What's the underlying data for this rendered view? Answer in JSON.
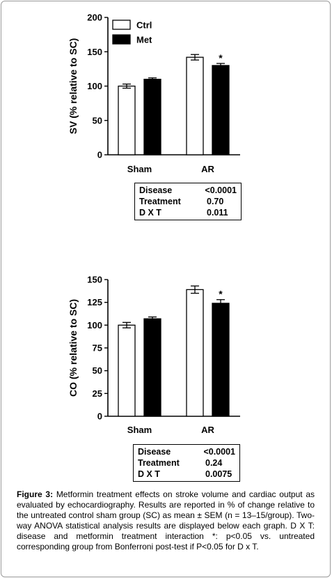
{
  "figure": {
    "caption_label": "Figure 3:",
    "caption_text": "Metformin treatment effects on stroke volume and cardiac output as evaluated by echocardiography. Results are reported in % of change relative to the untreated control sham group (SC) as mean ± SEM (n = 13–15/group). Two-way ANOVA statistical analysis results are displayed below each graph. D X T: disease and metformin treatment interaction *: p<0.05 vs. untreated corresponding group from Bonferroni post-test if P<0.05 for D x T."
  },
  "colors": {
    "ctrl": "#ffffff",
    "met": "#000000",
    "axis": "#000000"
  },
  "chart_data": [
    {
      "type": "bar",
      "ylabel": "SV  (% relative to SC)",
      "ylim": [
        0,
        200
      ],
      "yticks": [
        0,
        50,
        100,
        150,
        200
      ],
      "categories": [
        "Sham",
        "AR"
      ],
      "series": [
        {
          "name": "Ctrl",
          "values": [
            100,
            142
          ],
          "errors": [
            3,
            4
          ]
        },
        {
          "name": "Met",
          "values": [
            110,
            130
          ],
          "errors": [
            2,
            3
          ]
        }
      ],
      "significance": [
        {
          "series": "Met",
          "category": "AR",
          "label": "*"
        }
      ],
      "legend": {
        "placement": "top-left",
        "entries": [
          "Ctrl",
          "Met"
        ]
      },
      "grid": false,
      "stats": [
        {
          "term": "Disease",
          "p": "<0.0001"
        },
        {
          "term": "Treatment",
          "p": "0.70"
        },
        {
          "term": "D X T",
          "p": "0.011"
        }
      ]
    },
    {
      "type": "bar",
      "ylabel": "CO (% relative to SC)",
      "ylim": [
        0,
        150
      ],
      "yticks": [
        0,
        25,
        50,
        75,
        100,
        125,
        150
      ],
      "categories": [
        "Sham",
        "AR"
      ],
      "series": [
        {
          "name": "Ctrl",
          "values": [
            100,
            139
          ],
          "errors": [
            3,
            4
          ]
        },
        {
          "name": "Met",
          "values": [
            107,
            124
          ],
          "errors": [
            2,
            4
          ]
        }
      ],
      "significance": [
        {
          "series": "Met",
          "category": "AR",
          "label": "*"
        }
      ],
      "grid": false,
      "stats": [
        {
          "term": "Disease",
          "p": "<0.0001"
        },
        {
          "term": "Treatment",
          "p": "0.24"
        },
        {
          "term": "D X T",
          "p": "0.0075"
        }
      ]
    }
  ]
}
